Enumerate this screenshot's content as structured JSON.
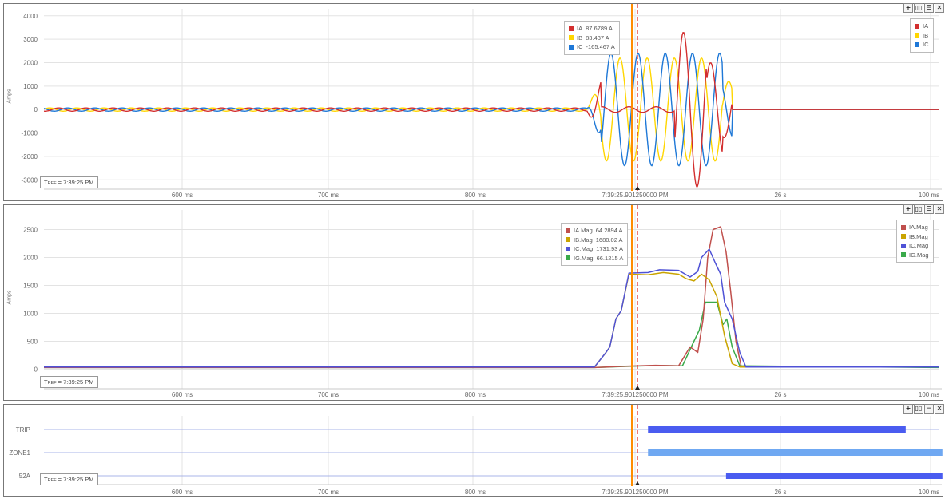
{
  "colors": {
    "ia": "#d32f2f",
    "ib": "#ffd600",
    "ic": "#1e78d7",
    "ia_mag": "#c0504d",
    "ib_mag": "#c9a400",
    "ic_mag": "#4f52d6",
    "ig_mag": "#3aaa4a",
    "trip": "#4a5cf0",
    "zone1": "#6fa8f2",
    "s52a": "#4a5cf0",
    "cursor": "#ff8c00",
    "cursor2": "#e03030"
  },
  "controls": {
    "add": "+",
    "split": "▯▯",
    "menu": "☰",
    "close": "✕"
  },
  "tref": {
    "prefix": "T",
    "sub": "REF",
    "value": " = 7:39:25 PM"
  },
  "x_ticks": [
    "600 ms",
    "700 ms",
    "800 ms",
    "7:39:25.901250000 PM",
    "26 s",
    "100 ms"
  ],
  "chart_data": [
    {
      "type": "line",
      "ylabel": "Amps",
      "ylim": [
        -3400,
        4300
      ],
      "y_ticks": [
        -3000,
        -2000,
        -1000,
        0,
        1000,
        2000,
        3000,
        4000
      ],
      "cursor_legend": [
        {
          "name": "IA",
          "value": "87.6789 A"
        },
        {
          "name": "IB",
          "value": "83.437 A"
        },
        {
          "name": "IC",
          "value": "-165.467 A"
        }
      ],
      "legend": [
        "IA",
        "IB",
        "IC"
      ]
    },
    {
      "type": "line",
      "ylabel": "Amps",
      "ylim": [
        -350,
        2850
      ],
      "y_ticks": [
        0,
        500,
        1000,
        1500,
        2000,
        2500
      ],
      "cursor_legend": [
        {
          "name": "IA.Mag",
          "value": "64.2894 A"
        },
        {
          "name": "IB.Mag",
          "value": "1680.02 A"
        },
        {
          "name": "IC.Mag",
          "value": "1731.93 A"
        },
        {
          "name": "IG.Mag",
          "value": "66.1215 A"
        }
      ],
      "legend": [
        "IA.Mag",
        "IB.Mag",
        "IC.Mag",
        "IG.Mag"
      ],
      "series_points": {
        "IC.Mag": [
          [
            0,
            40
          ],
          [
            720,
            40
          ],
          [
            735,
            300
          ],
          [
            740,
            400
          ],
          [
            748,
            900
          ],
          [
            755,
            1050
          ],
          [
            765,
            1720
          ],
          [
            790,
            1730
          ],
          [
            805,
            1780
          ],
          [
            830,
            1770
          ],
          [
            845,
            1650
          ],
          [
            855,
            1750
          ],
          [
            860,
            2000
          ],
          [
            870,
            2150
          ],
          [
            878,
            1900
          ],
          [
            885,
            1700
          ],
          [
            890,
            1200
          ],
          [
            900,
            900
          ],
          [
            910,
            300
          ],
          [
            918,
            40
          ],
          [
            1170,
            40
          ]
        ],
        "IB.Mag": [
          [
            0,
            40
          ],
          [
            720,
            40
          ],
          [
            735,
            300
          ],
          [
            740,
            400
          ],
          [
            748,
            900
          ],
          [
            755,
            1050
          ],
          [
            765,
            1700
          ],
          [
            790,
            1690
          ],
          [
            810,
            1730
          ],
          [
            830,
            1700
          ],
          [
            840,
            1620
          ],
          [
            850,
            1580
          ],
          [
            860,
            1700
          ],
          [
            870,
            1600
          ],
          [
            880,
            1300
          ],
          [
            890,
            600
          ],
          [
            900,
            100
          ],
          [
            910,
            40
          ],
          [
            1170,
            40
          ]
        ],
        "IA.Mag": [
          [
            0,
            30
          ],
          [
            720,
            30
          ],
          [
            760,
            55
          ],
          [
            800,
            70
          ],
          [
            830,
            60
          ],
          [
            845,
            400
          ],
          [
            855,
            300
          ],
          [
            862,
            900
          ],
          [
            868,
            2000
          ],
          [
            875,
            2500
          ],
          [
            885,
            2550
          ],
          [
            892,
            2100
          ],
          [
            898,
            1400
          ],
          [
            905,
            500
          ],
          [
            912,
            40
          ],
          [
            1170,
            40
          ]
        ],
        "IG.Mag": [
          [
            0,
            30
          ],
          [
            720,
            30
          ],
          [
            760,
            50
          ],
          [
            800,
            66
          ],
          [
            835,
            60
          ],
          [
            850,
            500
          ],
          [
            857,
            700
          ],
          [
            865,
            1200
          ],
          [
            880,
            1200
          ],
          [
            888,
            800
          ],
          [
            893,
            900
          ],
          [
            900,
            400
          ],
          [
            910,
            60
          ],
          [
            1170,
            30
          ]
        ]
      }
    },
    {
      "type": "digital",
      "channels": [
        "TRIP",
        "ZONE1",
        "52A"
      ],
      "bars": [
        {
          "channel": "TRIP",
          "start": 790,
          "end": 1127
        },
        {
          "channel": "ZONE1",
          "start": 790,
          "end": 1175
        },
        {
          "channel": "52A",
          "start": 892,
          "end": 1175
        }
      ]
    }
  ]
}
